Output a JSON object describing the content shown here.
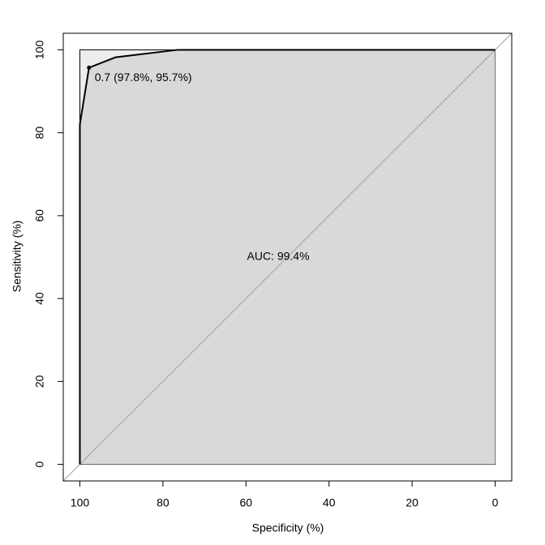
{
  "chart_data": {
    "type": "line",
    "x_label": "Specificity (%)",
    "y_label": "Sensitivity (%)",
    "x": [
      100,
      100,
      100,
      97.8,
      91.4,
      76.4,
      0
    ],
    "series": [
      {
        "color": "#000000",
        "values": [
          0,
          54,
          82,
          95.7,
          98.2,
          100,
          100
        ]
      }
    ],
    "xlim": [
      104,
      -4
    ],
    "ylim": [
      -4,
      104
    ],
    "xticks": [
      100,
      80,
      60,
      40,
      20,
      0
    ],
    "yticks": [
      0,
      20,
      40,
      60,
      80,
      100
    ],
    "auc_fill": "#d9d9d9",
    "max_auc_fill": "#ededed",
    "diagonal_color": "#a0a0a0",
    "threshold": {
      "x": 97.8,
      "y": 95.7,
      "label": "0.7 (97.8%, 95.7%)"
    },
    "auc_label": "AUC: 99.4%"
  }
}
